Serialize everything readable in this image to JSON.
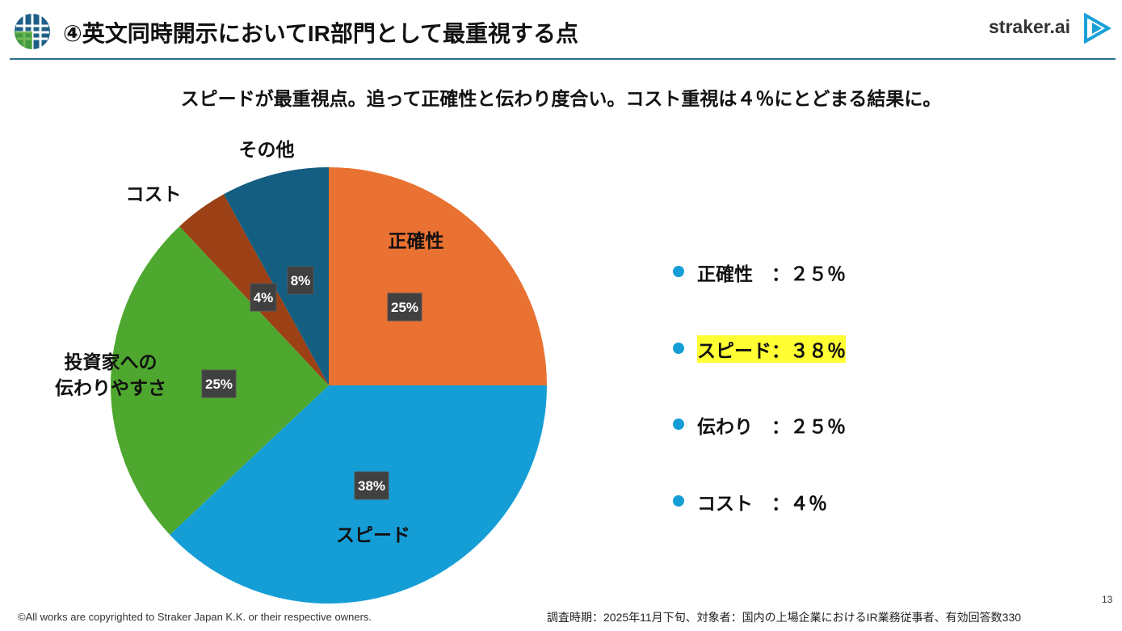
{
  "header": {
    "title": "④英文同時開示においてIR部門として最重視する点",
    "logo": "straker.ai"
  },
  "subtitle": "スピードが最重視点。追って正確性と伝わり度合い。コスト重視は４％にとどまる結果に。",
  "chart_data": {
    "type": "pie",
    "categories": [
      "正確性",
      "スピード",
      "投資家への\n伝わりやすさ",
      "コスト",
      "その他"
    ],
    "values": [
      25,
      38,
      25,
      4,
      8
    ],
    "value_labels": [
      "25%",
      "38%",
      "25%",
      "4%",
      "8%"
    ],
    "colors": [
      "#e97132",
      "#159ed6",
      "#4ea72e",
      "#9c4016",
      "#135e81"
    ]
  },
  "summary": [
    "正確性　：２５％",
    "スピード：３８％",
    "伝わり　：２５％",
    "コスト　：４％"
  ],
  "footer": {
    "copyright": "©All works are copyrighted to Straker Japan K.K. or their respective owners.",
    "source": "調査時期：2025年11月下旬、対象者：国内の上場企業におけるIR業務従事者、有効回答数330",
    "page": "13"
  }
}
